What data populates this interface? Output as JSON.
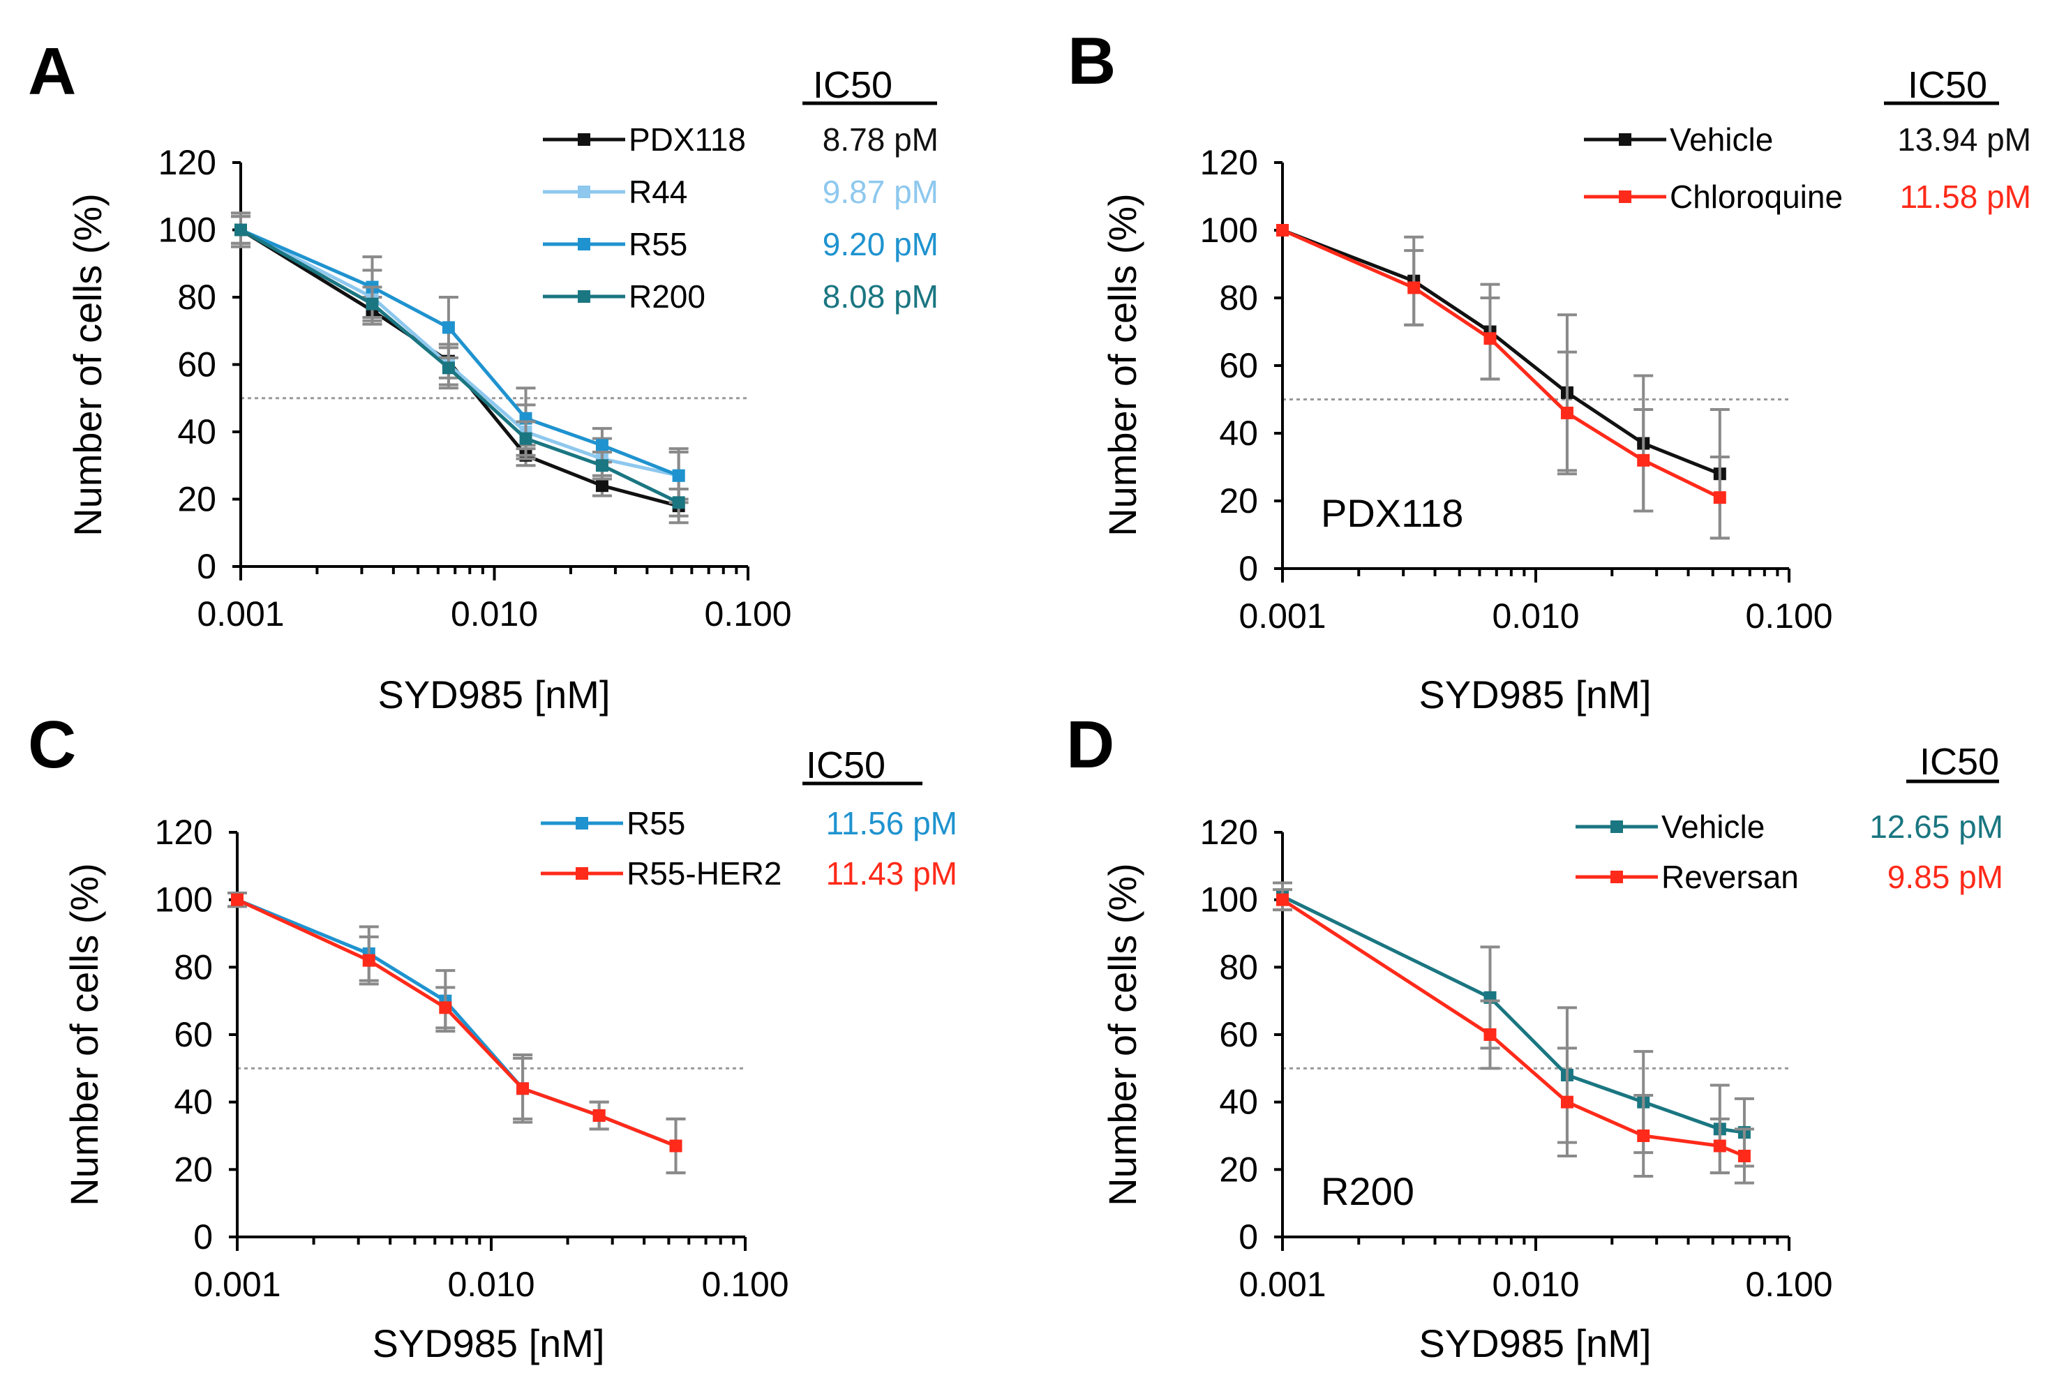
{
  "chart_data": [
    {
      "type": "line",
      "panel_label": "A",
      "xlabel": "SYD985 [nM]",
      "ylabel": "Number of cells (%)",
      "xscale": "log",
      "xlim": [
        0.001,
        0.1
      ],
      "ylim": [
        0,
        120
      ],
      "xticks": [
        0.001,
        0.01,
        0.1
      ],
      "xtick_labels": [
        "0.001",
        "0.010",
        "0.100"
      ],
      "yticks": [
        0,
        20,
        40,
        60,
        80,
        100,
        120
      ],
      "reference_line": 50,
      "legend_placement": "top-right",
      "ic50_header": "IC50",
      "annotation": "",
      "series": [
        {
          "name": "PDX118",
          "color": "#111111",
          "ic50": "8.78 pM",
          "x": [
            0.001,
            0.0033,
            0.0066,
            0.0133,
            0.0266,
            0.0533
          ],
          "y": [
            100,
            76,
            61,
            33,
            24,
            18
          ],
          "err": [
            4,
            4,
            5,
            3,
            3,
            5
          ]
        },
        {
          "name": "R44",
          "color": "#8ec8ee",
          "ic50": "9.87 pM",
          "x": [
            0.001,
            0.0033,
            0.0066,
            0.0133,
            0.0266,
            0.0533
          ],
          "y": [
            100,
            80,
            60,
            40,
            32,
            27
          ],
          "err": [
            4,
            8,
            6,
            8,
            6,
            8
          ]
        },
        {
          "name": "R55",
          "color": "#1f93cf",
          "ic50": "9.20 pM",
          "x": [
            0.001,
            0.0033,
            0.0066,
            0.0133,
            0.0266,
            0.0533
          ],
          "y": [
            100,
            83,
            71,
            44,
            36,
            27
          ],
          "err": [
            5,
            9,
            9,
            9,
            5,
            7
          ]
        },
        {
          "name": "R200",
          "color": "#1a7681",
          "ic50": "8.08 pM",
          "x": [
            0.001,
            0.0033,
            0.0066,
            0.0133,
            0.0266,
            0.0533
          ],
          "y": [
            100,
            78,
            59,
            38,
            30,
            19
          ],
          "err": [
            5,
            5,
            6,
            5,
            4,
            4
          ]
        }
      ]
    },
    {
      "type": "line",
      "panel_label": "B",
      "xlabel": "SYD985 [nM]",
      "ylabel": "Number of cells (%)",
      "xscale": "log",
      "xlim": [
        0.001,
        0.1
      ],
      "ylim": [
        0,
        120
      ],
      "xticks": [
        0.001,
        0.01,
        0.1
      ],
      "xtick_labels": [
        "0.001",
        "0.010",
        "0.100"
      ],
      "yticks": [
        0,
        20,
        40,
        60,
        80,
        100,
        120
      ],
      "reference_line": 50,
      "legend_placement": "top-right",
      "ic50_header": "IC50",
      "annotation": "PDX118",
      "series": [
        {
          "name": "Vehicle",
          "color": "#111111",
          "ic50": "13.94 pM",
          "x": [
            0.001,
            0.0033,
            0.0066,
            0.0133,
            0.0266,
            0.0533
          ],
          "y": [
            100,
            85,
            70,
            52,
            37,
            28
          ],
          "err": [
            0,
            13,
            14,
            23,
            20,
            19
          ]
        },
        {
          "name": "Chloroquine",
          "color": "#ff2a1a",
          "ic50": "11.58 pM",
          "x": [
            0.001,
            0.0033,
            0.0066,
            0.0133,
            0.0266,
            0.0533
          ],
          "y": [
            100,
            83,
            68,
            46,
            32,
            21
          ],
          "err": [
            0,
            11,
            12,
            18,
            15,
            12
          ]
        }
      ]
    },
    {
      "type": "line",
      "panel_label": "C",
      "xlabel": "SYD985 [nM]",
      "ylabel": "Number of cells (%)",
      "xscale": "log",
      "xlim": [
        0.001,
        0.1
      ],
      "ylim": [
        0,
        120
      ],
      "xticks": [
        0.001,
        0.01,
        0.1
      ],
      "xtick_labels": [
        "0.001",
        "0.010",
        "0.100"
      ],
      "yticks": [
        0,
        20,
        40,
        60,
        80,
        100,
        120
      ],
      "reference_line": 50,
      "legend_placement": "top-right",
      "ic50_header": "IC50",
      "annotation": "",
      "series": [
        {
          "name": "R55",
          "color": "#1f93cf",
          "ic50": "11.56 pM",
          "x": [
            0.001,
            0.0033,
            0.0066,
            0.0133,
            0.0266,
            0.0533
          ],
          "y": [
            100,
            84,
            70,
            44,
            36,
            27
          ],
          "err": [
            2,
            8,
            9,
            9,
            4,
            8
          ]
        },
        {
          "name": "R55-HER2",
          "color": "#ff2a1a",
          "ic50": "11.43 pM",
          "x": [
            0.001,
            0.0033,
            0.0066,
            0.0133,
            0.0266,
            0.0533
          ],
          "y": [
            100,
            82,
            68,
            44,
            36,
            27
          ],
          "err": [
            2,
            7,
            6,
            10,
            4,
            8
          ]
        }
      ]
    },
    {
      "type": "line",
      "panel_label": "D",
      "xlabel": "SYD985 [nM]",
      "ylabel": "Number of cells (%)",
      "xscale": "log",
      "xlim": [
        0.001,
        0.1
      ],
      "ylim": [
        0,
        120
      ],
      "xticks": [
        0.001,
        0.01,
        0.1
      ],
      "xtick_labels": [
        "0.001",
        "0.010",
        "0.100"
      ],
      "yticks": [
        0,
        20,
        40,
        60,
        80,
        100,
        120
      ],
      "reference_line": 50,
      "legend_placement": "top-right",
      "ic50_header": "IC50",
      "annotation": "R200",
      "series": [
        {
          "name": "Vehicle",
          "color": "#1a7681",
          "ic50": "12.65 pM",
          "x": [
            0.001,
            0.0066,
            0.0133,
            0.0266,
            0.0533,
            0.0666
          ],
          "y": [
            101,
            71,
            48,
            40,
            32,
            31
          ],
          "err": [
            4,
            15,
            20,
            15,
            13,
            10
          ]
        },
        {
          "name": "Reversan",
          "color": "#ff2a1a",
          "ic50": "9.85 pM",
          "x": [
            0.001,
            0.0066,
            0.0133,
            0.0266,
            0.0533,
            0.0666
          ],
          "y": [
            100,
            60,
            40,
            30,
            27,
            24
          ],
          "err": [
            3,
            10,
            16,
            12,
            8,
            8
          ]
        }
      ]
    }
  ]
}
